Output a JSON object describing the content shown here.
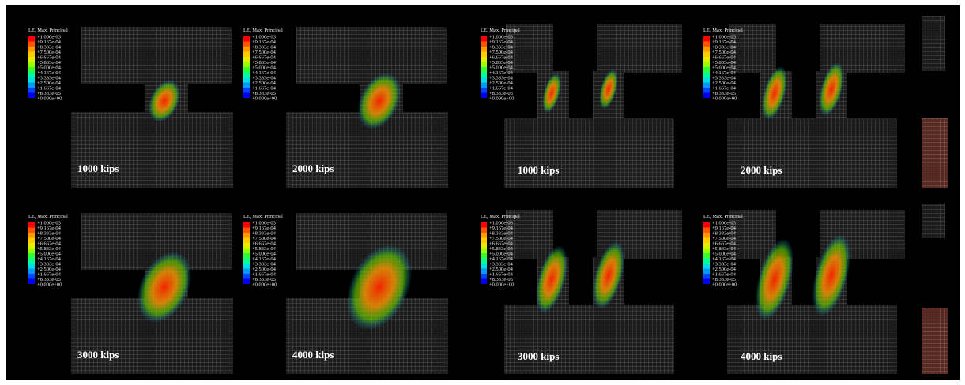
{
  "panels": [
    {
      "legend_title": "LE, Max. Principal",
      "legend_values": [
        "+1.000e-03",
        "+9.167e-04",
        "+8.333e-04",
        "+7.500e-04",
        "+6.667e-04",
        "+5.833e-04",
        "+5.000e-04",
        "+4.167e-04",
        "+3.333e-04",
        "+2.500e-04",
        "+1.667e-04",
        "+8.333e-05",
        "+0.000e+00"
      ],
      "label": "1000 kips"
    },
    {
      "legend_title": "LE, Max. Principal",
      "legend_values": [
        "+1.000e-03",
        "+9.167e-04",
        "+8.333e-04",
        "+7.500e-04",
        "+6.667e-04",
        "+5.833e-04",
        "+5.000e-04",
        "+4.167e-04",
        "+3.333e-04",
        "+2.500e-04",
        "+1.667e-04",
        "+8.333e-05",
        "+0.000e+00"
      ],
      "label": "2000  kips"
    },
    {
      "legend_title": "LE, Max. Principal",
      "legend_values": [
        "+1.000e-03",
        "+9.167e-04",
        "+8.333e-04",
        "+7.500e-04",
        "+6.667e-04",
        "+5.833e-04",
        "+5.000e-04",
        "+4.167e-04",
        "+3.333e-04",
        "+2.500e-04",
        "+1.667e-04",
        "+8.333e-05",
        "+0.000e+00"
      ],
      "label": "3000 kips"
    },
    {
      "legend_title": "LE, Max. Principal",
      "legend_values": [
        "+1.000e-03",
        "+9.167e-04",
        "+8.333e-04",
        "+7.500e-04",
        "+6.667e-04",
        "+5.833e-04",
        "+5.000e-04",
        "+4.167e-04",
        "+3.333e-04",
        "+2.500e-04",
        "+1.667e-04",
        "+8.333e-05",
        "+0.000e+00"
      ],
      "label": "4000 kips"
    },
    {
      "legend_title": "LE, Max. Principal",
      "legend_values": [
        "+1.000e-03",
        "+9.167e-04",
        "+8.333e-04",
        "+7.500e-04",
        "+6.667e-04",
        "+5.833e-04",
        "+5.000e-04",
        "+4.167e-04",
        "+3.333e-04",
        "+2.500e-04",
        "+1.667e-04",
        "+8.333e-05",
        "+0.000e+00"
      ],
      "label": "1000 kips"
    },
    {
      "legend_title": "LE, Max. Principal",
      "legend_values": [
        "+1.000e-03",
        "+9.167e-04",
        "+8.333e-04",
        "+7.500e-04",
        "+6.667e-04",
        "+5.833e-04",
        "+5.000e-04",
        "+4.167e-04",
        "+3.333e-04",
        "+2.500e-04",
        "+1.667e-04",
        "+8.333e-05",
        "+0.000e+00"
      ],
      "label": "2000  kips"
    },
    {
      "legend_title": "LE, Max. Principal",
      "legend_values": [
        "+1.000e-03",
        "+9.167e-04",
        "+8.333e-04",
        "+7.500e-04",
        "+6.667e-04",
        "+5.833e-04",
        "+5.000e-04",
        "+4.167e-04",
        "+3.333e-04",
        "+2.500e-04",
        "+1.667e-04",
        "+8.333e-05",
        "+0.000e+00"
      ],
      "label": "3000 kips"
    },
    {
      "legend_title": "LE, Max. Principal",
      "legend_values": [
        "+1.000e-03",
        "+9.167e-04",
        "+8.333e-04",
        "+7.500e-04",
        "+6.667e-04",
        "+5.833e-04",
        "+5.000e-04",
        "+4.167e-04",
        "+3.333e-04",
        "+2.500e-04",
        "+1.667e-04",
        "+8.333e-05",
        "+0.000e+00"
      ],
      "label": "4000 kips"
    }
  ]
}
